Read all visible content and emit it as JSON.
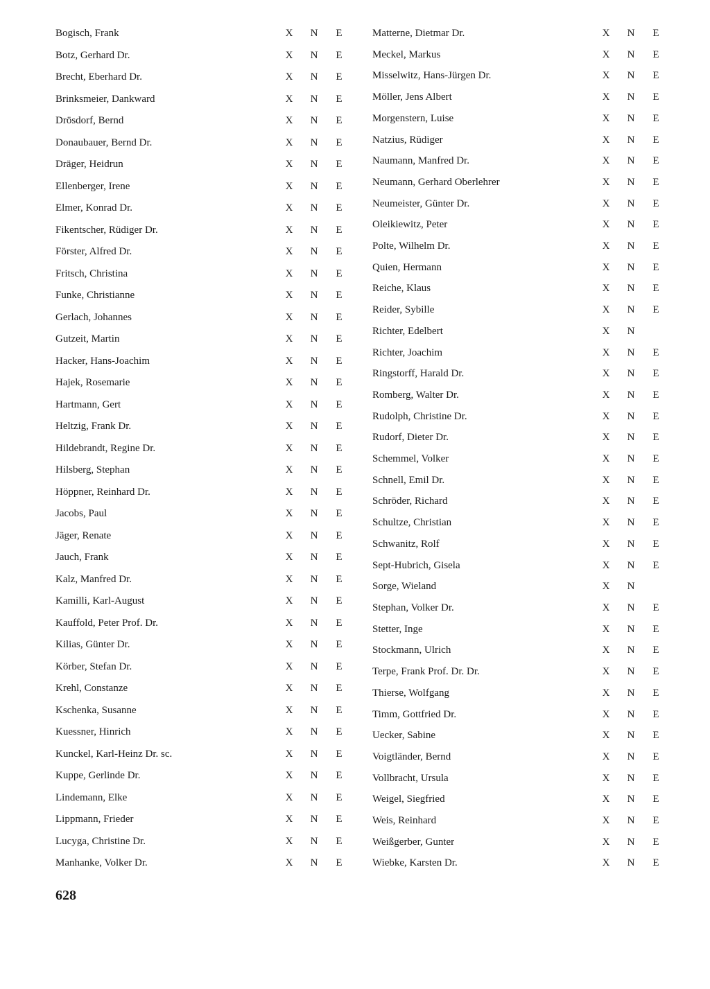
{
  "pageNumber": "628",
  "marks": {
    "c1": "X",
    "c2": "N",
    "c3": "E"
  },
  "left": [
    {
      "name": "Bogisch, Frank",
      "x": "X",
      "n": "N",
      "e": "E"
    },
    {
      "name": "Botz, Gerhard Dr.",
      "x": "X",
      "n": "N",
      "e": "E"
    },
    {
      "name": "Brecht, Eberhard Dr.",
      "x": "X",
      "n": "N",
      "e": "E"
    },
    {
      "name": "Brinksmeier, Dankward",
      "x": "X",
      "n": "N",
      "e": "E"
    },
    {
      "name": "Drösdorf, Bernd",
      "x": "X",
      "n": "N",
      "e": "E"
    },
    {
      "name": "Donaubauer, Bernd Dr.",
      "x": "X",
      "n": "N",
      "e": "E"
    },
    {
      "name": "Dräger, Heidrun",
      "x": "X",
      "n": "N",
      "e": "E"
    },
    {
      "name": "Ellenberger, Irene",
      "x": "X",
      "n": "N",
      "e": "E"
    },
    {
      "name": "Elmer, Konrad Dr.",
      "x": "X",
      "n": "N",
      "e": "E"
    },
    {
      "name": "Fikentscher, Rüdiger Dr.",
      "x": "X",
      "n": "N",
      "e": "E"
    },
    {
      "name": "Förster, Alfred Dr.",
      "x": "X",
      "n": "N",
      "e": "E"
    },
    {
      "name": "Fritsch, Christina",
      "x": "X",
      "n": "N",
      "e": "E"
    },
    {
      "name": "Funke, Christianne",
      "x": "X",
      "n": "N",
      "e": "E"
    },
    {
      "name": "Gerlach, Johannes",
      "x": "X",
      "n": "N",
      "e": "E"
    },
    {
      "name": "Gutzeit, Martin",
      "x": "X",
      "n": "N",
      "e": "E"
    },
    {
      "name": "Hacker, Hans-Joachim",
      "x": "X",
      "n": "N",
      "e": "E"
    },
    {
      "name": "Hajek, Rosemarie",
      "x": "X",
      "n": "N",
      "e": "E"
    },
    {
      "name": "Hartmann, Gert",
      "x": "X",
      "n": "N",
      "e": "E"
    },
    {
      "name": "Heltzig, Frank Dr.",
      "x": "X",
      "n": "N",
      "e": "E"
    },
    {
      "name": "Hildebrandt, Regine Dr.",
      "x": "X",
      "n": "N",
      "e": "E"
    },
    {
      "name": "Hilsberg, Stephan",
      "x": "X",
      "n": "N",
      "e": "E"
    },
    {
      "name": "Höppner, Reinhard Dr.",
      "x": "X",
      "n": "N",
      "e": "E"
    },
    {
      "name": "Jacobs, Paul",
      "x": "X",
      "n": "N",
      "e": "E"
    },
    {
      "name": "Jäger, Renate",
      "x": "X",
      "n": "N",
      "e": "E"
    },
    {
      "name": "Jauch, Frank",
      "x": "X",
      "n": "N",
      "e": "E"
    },
    {
      "name": "Kalz, Manfred Dr.",
      "x": "X",
      "n": "N",
      "e": "E"
    },
    {
      "name": "Kamilli, Karl-August",
      "x": "X",
      "n": "N",
      "e": "E"
    },
    {
      "name": "Kauffold, Peter Prof. Dr.",
      "x": "X",
      "n": "N",
      "e": "E"
    },
    {
      "name": "Kilias, Günter Dr.",
      "x": "X",
      "n": "N",
      "e": "E"
    },
    {
      "name": "Körber, Stefan Dr.",
      "x": "X",
      "n": "N",
      "e": "E"
    },
    {
      "name": "Krehl, Constanze",
      "x": "X",
      "n": "N",
      "e": "E"
    },
    {
      "name": "Kschenka, Susanne",
      "x": "X",
      "n": "N",
      "e": "E"
    },
    {
      "name": "Kuessner, Hinrich",
      "x": "X",
      "n": "N",
      "e": "E"
    },
    {
      "name": "Kunckel, Karl-Heinz Dr. sc.",
      "x": "X",
      "n": "N",
      "e": "E"
    },
    {
      "name": "Kuppe, Gerlinde Dr.",
      "x": "X",
      "n": "N",
      "e": "E"
    },
    {
      "name": "Lindemann, Elke",
      "x": "X",
      "n": "N",
      "e": "E"
    },
    {
      "name": "Lippmann, Frieder",
      "x": "X",
      "n": "N",
      "e": "E"
    },
    {
      "name": "Lucyga, Christine Dr.",
      "x": "X",
      "n": "N",
      "e": "E"
    },
    {
      "name": "Manhanke, Volker Dr.",
      "x": "X",
      "n": "N",
      "e": "E"
    }
  ],
  "right": [
    {
      "name": "Matterne, Dietmar Dr.",
      "x": "X",
      "n": "N",
      "e": "E"
    },
    {
      "name": "Meckel, Markus",
      "x": "X",
      "n": "N",
      "e": "E"
    },
    {
      "name": "Misselwitz, Hans-Jürgen Dr.",
      "x": "X",
      "n": "N",
      "e": "E"
    },
    {
      "name": "Möller, Jens Albert",
      "x": "X",
      "n": "N",
      "e": "E"
    },
    {
      "name": "Morgenstern, Luise",
      "x": "X",
      "n": "N",
      "e": "E"
    },
    {
      "name": "Natzius, Rüdiger",
      "x": "X",
      "n": "N",
      "e": "E"
    },
    {
      "name": "Naumann, Manfred Dr.",
      "x": "X",
      "n": "N",
      "e": "E"
    },
    {
      "name": "Neumann, Gerhard Oberlehrer",
      "x": "X",
      "n": "N",
      "e": "E"
    },
    {
      "name": "Neumeister, Günter Dr.",
      "x": "X",
      "n": "N",
      "e": "E"
    },
    {
      "name": "Oleikiewitz, Peter",
      "x": "X",
      "n": "N",
      "e": "E"
    },
    {
      "name": "Polte, Wilhelm Dr.",
      "x": "X",
      "n": "N",
      "e": "E"
    },
    {
      "name": "Quien, Hermann",
      "x": "X",
      "n": "N",
      "e": "E"
    },
    {
      "name": "Reiche, Klaus",
      "x": "X",
      "n": "N",
      "e": "E"
    },
    {
      "name": "Reider, Sybille",
      "x": "X",
      "n": "N",
      "e": "E"
    },
    {
      "name": "Richter, Edelbert",
      "x": "X",
      "n": "N",
      "e": ""
    },
    {
      "name": "Richter, Joachim",
      "x": "X",
      "n": "N",
      "e": "E"
    },
    {
      "name": "Ringstorff, Harald Dr.",
      "x": "X",
      "n": "N",
      "e": "E"
    },
    {
      "name": "Romberg, Walter Dr.",
      "x": "X",
      "n": "N",
      "e": "E"
    },
    {
      "name": "Rudolph, Christine Dr.",
      "x": "X",
      "n": "N",
      "e": "E"
    },
    {
      "name": "Rudorf, Dieter Dr.",
      "x": "X",
      "n": "N",
      "e": "E"
    },
    {
      "name": "Schemmel, Volker",
      "x": "X",
      "n": "N",
      "e": "E"
    },
    {
      "name": "Schnell, Emil Dr.",
      "x": "X",
      "n": "N",
      "e": "E"
    },
    {
      "name": "Schröder, Richard",
      "x": "X",
      "n": "N",
      "e": "E"
    },
    {
      "name": "Schultze, Christian",
      "x": "X",
      "n": "N",
      "e": "E"
    },
    {
      "name": "Schwanitz, Rolf",
      "x": "X",
      "n": "N",
      "e": "E"
    },
    {
      "name": "Sept-Hubrich, Gisela",
      "x": "X",
      "n": "N",
      "e": "E"
    },
    {
      "name": "Sorge, Wieland",
      "x": "X",
      "n": "N",
      "e": ""
    },
    {
      "name": "Stephan, Volker Dr.",
      "x": "X",
      "n": "N",
      "e": "E"
    },
    {
      "name": "Stetter, Inge",
      "x": "X",
      "n": "N",
      "e": "E"
    },
    {
      "name": "Stockmann, Ulrich",
      "x": "X",
      "n": "N",
      "e": "E"
    },
    {
      "name": "Terpe, Frank Prof. Dr. Dr.",
      "x": "X",
      "n": "N",
      "e": "E"
    },
    {
      "name": "Thierse, Wolfgang",
      "x": "X",
      "n": "N",
      "e": "E"
    },
    {
      "name": "Timm, Gottfried Dr.",
      "x": "X",
      "n": "N",
      "e": "E"
    },
    {
      "name": "Uecker, Sabine",
      "x": "X",
      "n": "N",
      "e": "E"
    },
    {
      "name": "Voigtländer, Bernd",
      "x": "X",
      "n": "N",
      "e": "E"
    },
    {
      "name": "Vollbracht, Ursula",
      "x": "X",
      "n": "N",
      "e": "E"
    },
    {
      "name": "Weigel, Siegfried",
      "x": "X",
      "n": "N",
      "e": "E"
    },
    {
      "name": "Weis, Reinhard",
      "x": "X",
      "n": "N",
      "e": "E"
    },
    {
      "name": "Weißgerber, Gunter",
      "x": "X",
      "n": "N",
      "e": "E"
    },
    {
      "name": "Wiebke, Karsten Dr.",
      "x": "X",
      "n": "N",
      "e": "E"
    }
  ]
}
